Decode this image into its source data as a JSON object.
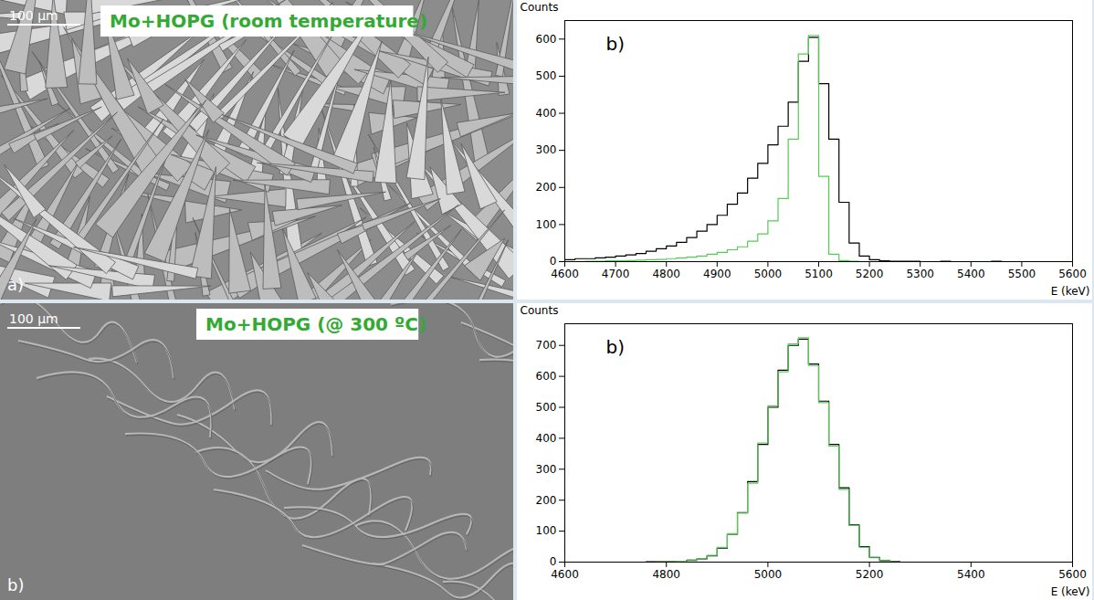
{
  "chart_data": [
    {
      "type": "histogram",
      "panel_label": "b)",
      "x_label": "E (keV)",
      "y_label": "Counts",
      "bins": [
        4600,
        4620,
        4640,
        4660,
        4680,
        4700,
        4720,
        4740,
        4760,
        4780,
        4800,
        4820,
        4840,
        4860,
        4880,
        4900,
        4920,
        4940,
        4960,
        4980,
        5000,
        5020,
        5040,
        5060,
        5080,
        5100,
        5120,
        5140,
        5160,
        5180,
        5200,
        5220,
        5240,
        5260,
        5280,
        5300,
        5320,
        5340,
        5360,
        5380,
        5400,
        5420,
        5440,
        5460,
        5480,
        5500,
        5520,
        5540,
        5560,
        5580,
        5600
      ],
      "series": [
        {
          "color": "#000000",
          "values": [
            5,
            8,
            8,
            10,
            12,
            15,
            18,
            22,
            28,
            35,
            42,
            52,
            65,
            82,
            100,
            125,
            155,
            185,
            225,
            265,
            315,
            365,
            430,
            540,
            605,
            480,
            330,
            160,
            50,
            15,
            5,
            2,
            1,
            1,
            1,
            0,
            0,
            1,
            0,
            0,
            0,
            0,
            1,
            0,
            0,
            0,
            0,
            0,
            0,
            0
          ]
        },
        {
          "color": "#55cc55",
          "values": [
            0,
            0,
            1,
            1,
            2,
            2,
            3,
            4,
            5,
            6,
            8,
            10,
            12,
            15,
            20,
            25,
            32,
            40,
            55,
            75,
            110,
            170,
            330,
            560,
            610,
            230,
            20,
            3,
            1,
            0,
            0,
            0,
            0,
            0,
            0,
            0,
            0,
            0,
            0,
            0,
            0,
            0,
            0,
            0,
            0,
            0,
            0,
            0,
            0,
            0
          ]
        }
      ],
      "xlim": [
        4600,
        5600
      ],
      "xticks": [
        4600,
        4700,
        4800,
        4900,
        5000,
        5100,
        5200,
        5300,
        5400,
        5500,
        5600
      ],
      "ylim": [
        0,
        650
      ],
      "yticks": [
        0,
        100,
        200,
        300,
        400,
        500,
        600
      ]
    },
    {
      "type": "histogram",
      "panel_label": "b)",
      "x_label": "E (keV)",
      "y_label": "Counts",
      "bins": [
        4600,
        4620,
        4640,
        4660,
        4680,
        4700,
        4720,
        4740,
        4760,
        4780,
        4800,
        4820,
        4840,
        4860,
        4880,
        4900,
        4920,
        4940,
        4960,
        4980,
        5000,
        5020,
        5040,
        5060,
        5080,
        5100,
        5120,
        5140,
        5160,
        5180,
        5200,
        5220,
        5240,
        5260,
        5280,
        5300,
        5320,
        5340,
        5360,
        5380,
        5400,
        5420,
        5440,
        5460,
        5480,
        5500,
        5520,
        5540,
        5560,
        5580,
        5600
      ],
      "series": [
        {
          "color": "#000000",
          "values": [
            0,
            0,
            0,
            0,
            0,
            0,
            0,
            0,
            1,
            1,
            2,
            3,
            6,
            10,
            20,
            45,
            90,
            160,
            260,
            380,
            500,
            620,
            700,
            720,
            640,
            520,
            380,
            240,
            120,
            50,
            15,
            5,
            2,
            0,
            0,
            0,
            0,
            0,
            0,
            0,
            0,
            0,
            0,
            0,
            0,
            0,
            0,
            0,
            0,
            0
          ]
        },
        {
          "color": "#55cc55",
          "values": [
            0,
            0,
            0,
            0,
            0,
            0,
            0,
            0,
            0,
            1,
            2,
            3,
            5,
            10,
            22,
            48,
            92,
            158,
            255,
            385,
            505,
            615,
            705,
            725,
            635,
            515,
            375,
            235,
            118,
            48,
            14,
            4,
            1,
            0,
            0,
            0,
            0,
            0,
            0,
            0,
            0,
            0,
            0,
            0,
            0,
            0,
            0,
            0,
            0,
            0
          ]
        }
      ],
      "xlim": [
        4600,
        5600
      ],
      "xticks": [
        4600,
        4800,
        5000,
        5200,
        5400,
        5600
      ],
      "ylim": [
        0,
        770
      ],
      "yticks": [
        0,
        100,
        200,
        300,
        400,
        500,
        600,
        700
      ]
    }
  ],
  "images": [
    {
      "title": "Mo+HOPG (room temperature)",
      "scale_bar": "100 µm",
      "panel_label": "a)"
    },
    {
      "title": "Mo+HOPG (@ 300 ºC)",
      "scale_bar": "100 µm",
      "panel_label": "b)"
    }
  ]
}
